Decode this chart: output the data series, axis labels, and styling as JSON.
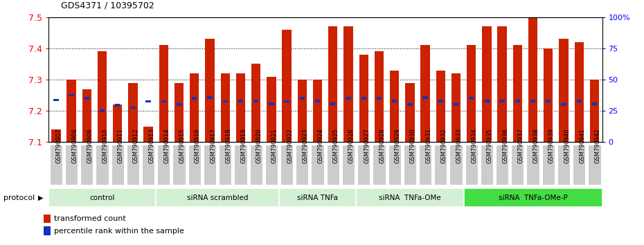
{
  "title": "GDS4371 / 10395702",
  "samples": [
    "GSM790907",
    "GSM790908",
    "GSM790909",
    "GSM790910",
    "GSM790911",
    "GSM790912",
    "GSM790913",
    "GSM790914",
    "GSM790915",
    "GSM790916",
    "GSM790917",
    "GSM790918",
    "GSM790919",
    "GSM790920",
    "GSM790921",
    "GSM790922",
    "GSM790923",
    "GSM790924",
    "GSM790925",
    "GSM790926",
    "GSM790927",
    "GSM790928",
    "GSM790929",
    "GSM790930",
    "GSM790931",
    "GSM790932",
    "GSM790933",
    "GSM790934",
    "GSM790935",
    "GSM790936",
    "GSM790937",
    "GSM790938",
    "GSM790939",
    "GSM790940",
    "GSM790941",
    "GSM790942"
  ],
  "bar_values": [
    7.14,
    7.3,
    7.27,
    7.39,
    7.22,
    7.29,
    7.15,
    7.41,
    7.29,
    7.32,
    7.43,
    7.32,
    7.32,
    7.35,
    7.31,
    7.46,
    7.3,
    7.3,
    7.47,
    7.47,
    7.38,
    7.39,
    7.33,
    7.29,
    7.41,
    7.33,
    7.32,
    7.41,
    7.47,
    7.47,
    7.41,
    7.5,
    7.4,
    7.43,
    7.42,
    7.3
  ],
  "blue_marker_positions": [
    7.235,
    7.25,
    7.24,
    7.2,
    7.218,
    7.21,
    7.23,
    7.23,
    7.22,
    7.24,
    7.242,
    7.23,
    7.232,
    7.232,
    7.222,
    7.23,
    7.24,
    7.232,
    7.222,
    7.24,
    7.24,
    7.24,
    7.232,
    7.22,
    7.242,
    7.232,
    7.22,
    7.24,
    7.232,
    7.232,
    7.232,
    7.232,
    7.232,
    7.22,
    7.232,
    7.222
  ],
  "groups": [
    {
      "label": "control",
      "start": 0,
      "end": 7,
      "color": "#d4f0d4"
    },
    {
      "label": "siRNA scrambled",
      "start": 7,
      "end": 15,
      "color": "#d4f0d4"
    },
    {
      "label": "siRNA TNFa",
      "start": 15,
      "end": 20,
      "color": "#d4f0d4"
    },
    {
      "label": "siRNA  TNFa-OMe",
      "start": 20,
      "end": 27,
      "color": "#d4f0d4"
    },
    {
      "label": "siRNA  TNFa-OMe-P",
      "start": 27,
      "end": 36,
      "color": "#44dd44"
    }
  ],
  "ylim": [
    7.1,
    7.5
  ],
  "yticks": [
    7.1,
    7.2,
    7.3,
    7.4,
    7.5
  ],
  "bar_color": "#cc2200",
  "blue_color": "#1133bb",
  "tickbg_color": "#cccccc",
  "tickbg_edge": "#ffffff"
}
